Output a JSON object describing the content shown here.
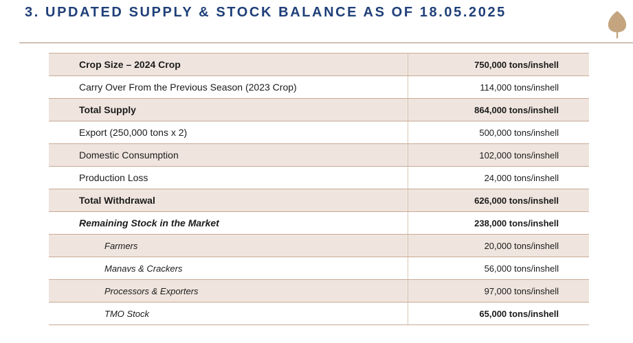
{
  "header": {
    "title": "3. UPDATED SUPPLY & STOCK BALANCE AS OF 18.05.2025",
    "icon": "hazelnut-leaf-icon"
  },
  "colors": {
    "title": "#1f3f78",
    "accent": "#a98c79",
    "row_shade": "#efe5de"
  },
  "rows": [
    {
      "label": "Crop Size – 2024 Crop",
      "value": "750,000 tons/inshell"
    },
    {
      "label": "Carry Over From the Previous Season (2023 Crop)",
      "value": "114,000 tons/inshell"
    },
    {
      "label": "Total Supply",
      "value": "864,000 tons/inshell"
    },
    {
      "label": "Export (250,000 tons x 2)",
      "value": "500,000 tons/inshell"
    },
    {
      "label": "Domestic Consumption",
      "value": "102,000 tons/inshell"
    },
    {
      "label": "Production Loss",
      "value": "24,000 tons/inshell"
    },
    {
      "label": "Total Withdrawal",
      "value": "626,000 tons/inshell"
    },
    {
      "label": "Remaining Stock in the Market",
      "value": "238,000 tons/inshell"
    },
    {
      "label": "Farmers",
      "value": "20,000 tons/inshell"
    },
    {
      "label": "Manavs & Crackers",
      "value": "56,000 tons/inshell"
    },
    {
      "label": "Processors & Exporters",
      "value": "97,000 tons/inshell"
    },
    {
      "label": "TMO Stock",
      "value": "65,000 tons/inshell"
    }
  ]
}
